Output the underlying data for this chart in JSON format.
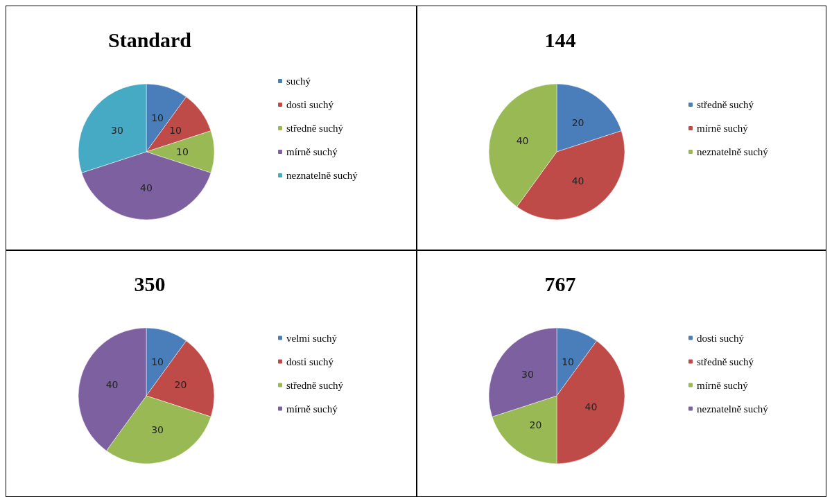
{
  "chart_data": [
    {
      "type": "pie",
      "title": "Standard",
      "categories": [
        "suchý",
        "dosti suchý",
        "středně suchý",
        "mírně suchý",
        "neznatelně suchý"
      ],
      "values": [
        10,
        10,
        10,
        40,
        30
      ],
      "colors": [
        "#4a7ebb",
        "#be4b48",
        "#98b954",
        "#7d60a0",
        "#46aac5"
      ],
      "data_labels": true,
      "legend": "right"
    },
    {
      "type": "pie",
      "title": "144",
      "categories": [
        "středně suchý",
        "mírně suchý",
        "neznatelně suchý"
      ],
      "values": [
        20,
        40,
        40
      ],
      "colors": [
        "#4a7ebb",
        "#be4b48",
        "#98b954"
      ],
      "data_labels": true,
      "legend": "right"
    },
    {
      "type": "pie",
      "title": "350",
      "categories": [
        "velmi suchý",
        "dosti suchý",
        "středně suchý",
        "mírně suchý"
      ],
      "values": [
        10,
        20,
        30,
        40
      ],
      "colors": [
        "#4a7ebb",
        "#be4b48",
        "#98b954",
        "#7d60a0"
      ],
      "data_labels": true,
      "legend": "right"
    },
    {
      "type": "pie",
      "title": "767",
      "categories": [
        "dosti suchý",
        "středně suchý",
        "mírně suchý",
        "neznatelně suchý"
      ],
      "values": [
        10,
        40,
        20,
        30
      ],
      "colors": [
        "#4a7ebb",
        "#be4b48",
        "#98b954",
        "#7d60a0"
      ],
      "data_labels": true,
      "legend": "right"
    }
  ]
}
